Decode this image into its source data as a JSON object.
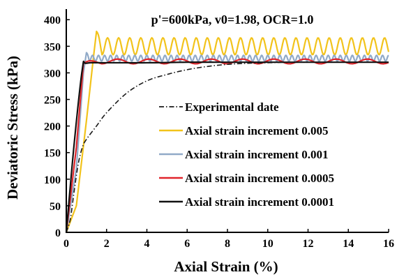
{
  "chart_data": {
    "type": "line",
    "title": "p'=600kPa, v0=1.98, OCR=1.0",
    "xlabel": "Axial Strain (%)",
    "ylabel": "Deviatoric Stress (kPa)",
    "xlim": [
      0,
      16
    ],
    "ylim": [
      0,
      420
    ],
    "xticks": [
      0,
      2,
      4,
      6,
      8,
      10,
      12,
      14,
      16
    ],
    "yticks": [
      0,
      50,
      100,
      150,
      200,
      250,
      300,
      350,
      400
    ],
    "grid": false,
    "legend_position": "lower-right",
    "series": [
      {
        "name": "Experimental date",
        "color": "#1a1a1a",
        "style": "dashdot",
        "points": [
          [
            0,
            0
          ],
          [
            0.2,
            25
          ],
          [
            0.4,
            80
          ],
          [
            0.6,
            130
          ],
          [
            0.8,
            160
          ],
          [
            1.0,
            175
          ],
          [
            1.5,
            200
          ],
          [
            2,
            225
          ],
          [
            3,
            262
          ],
          [
            4,
            285
          ],
          [
            5,
            297
          ],
          [
            6,
            306
          ],
          [
            7,
            312
          ],
          [
            8,
            316
          ],
          [
            9,
            318
          ],
          [
            10,
            319
          ],
          [
            11,
            320
          ],
          [
            12,
            320
          ],
          [
            13,
            320
          ]
        ]
      },
      {
        "name": "Axial strain increment 0.005",
        "color": "#f2c31b",
        "style": "oscillating",
        "rise": [
          [
            0,
            0
          ],
          [
            0.5,
            50
          ],
          [
            1.0,
            210
          ],
          [
            1.35,
            330
          ],
          [
            1.5,
            378
          ]
        ],
        "osc_start": 1.5,
        "osc_end": 16,
        "peak": 366,
        "trough": 334,
        "first_peak": 378,
        "period": 0.55
      },
      {
        "name": "Axial strain increment 0.001",
        "color": "#91aac8",
        "style": "oscillating",
        "rise": [
          [
            0,
            0
          ],
          [
            0.5,
            120
          ],
          [
            0.85,
            300
          ],
          [
            1.0,
            338
          ]
        ],
        "osc_start": 1.0,
        "osc_end": 16,
        "peak": 333,
        "trough": 322,
        "first_peak": 338,
        "period": 0.3
      },
      {
        "name": "Axial strain increment 0.0005",
        "color": "#e0252b",
        "style": "oscillating",
        "rise": [
          [
            0,
            0
          ],
          [
            0.5,
            160
          ],
          [
            0.85,
            318
          ],
          [
            1.0,
            321
          ]
        ],
        "osc_start": 1.0,
        "osc_end": 16,
        "peak": 326,
        "trough": 317,
        "first_peak": 322,
        "period": 1.55
      },
      {
        "name": "Axial strain increment 0.0001",
        "color": "#111111",
        "style": "solid",
        "points": [
          [
            0,
            0
          ],
          [
            0.4,
            170
          ],
          [
            0.8,
            308
          ],
          [
            1.0,
            318
          ],
          [
            2,
            319
          ],
          [
            4,
            319
          ],
          [
            6,
            320
          ],
          [
            8,
            320
          ],
          [
            10,
            320
          ],
          [
            12,
            320
          ],
          [
            14,
            320
          ],
          [
            16,
            320
          ]
        ]
      }
    ]
  }
}
